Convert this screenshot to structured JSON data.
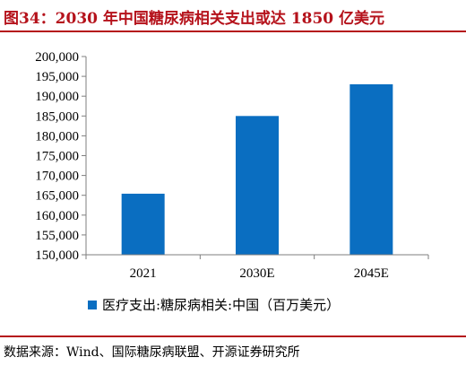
{
  "title": "图34：2030 年中国糖尿病相关支出或达 1850 亿美元",
  "source": "数据来源：Wind、国际糖尿病联盟、开源证券研究所",
  "colors": {
    "accent": "#b5121b",
    "bar": "#0a6ec1",
    "axis": "#7f7f7f"
  },
  "chart_data": {
    "type": "bar",
    "categories": [
      "2021",
      "2030E",
      "2045E"
    ],
    "series": [
      {
        "name": "医疗支出:糖尿病相关:中国（百万美元）",
        "values": [
          165400,
          185000,
          193000
        ]
      }
    ],
    "ylim": [
      150000,
      200000
    ],
    "yticks": [
      "150,000",
      "155,000",
      "160,000",
      "165,000",
      "170,000",
      "175,000",
      "180,000",
      "185,000",
      "190,000",
      "195,000",
      "200,000"
    ],
    "grid": false,
    "legend_position": "bottom-left"
  }
}
